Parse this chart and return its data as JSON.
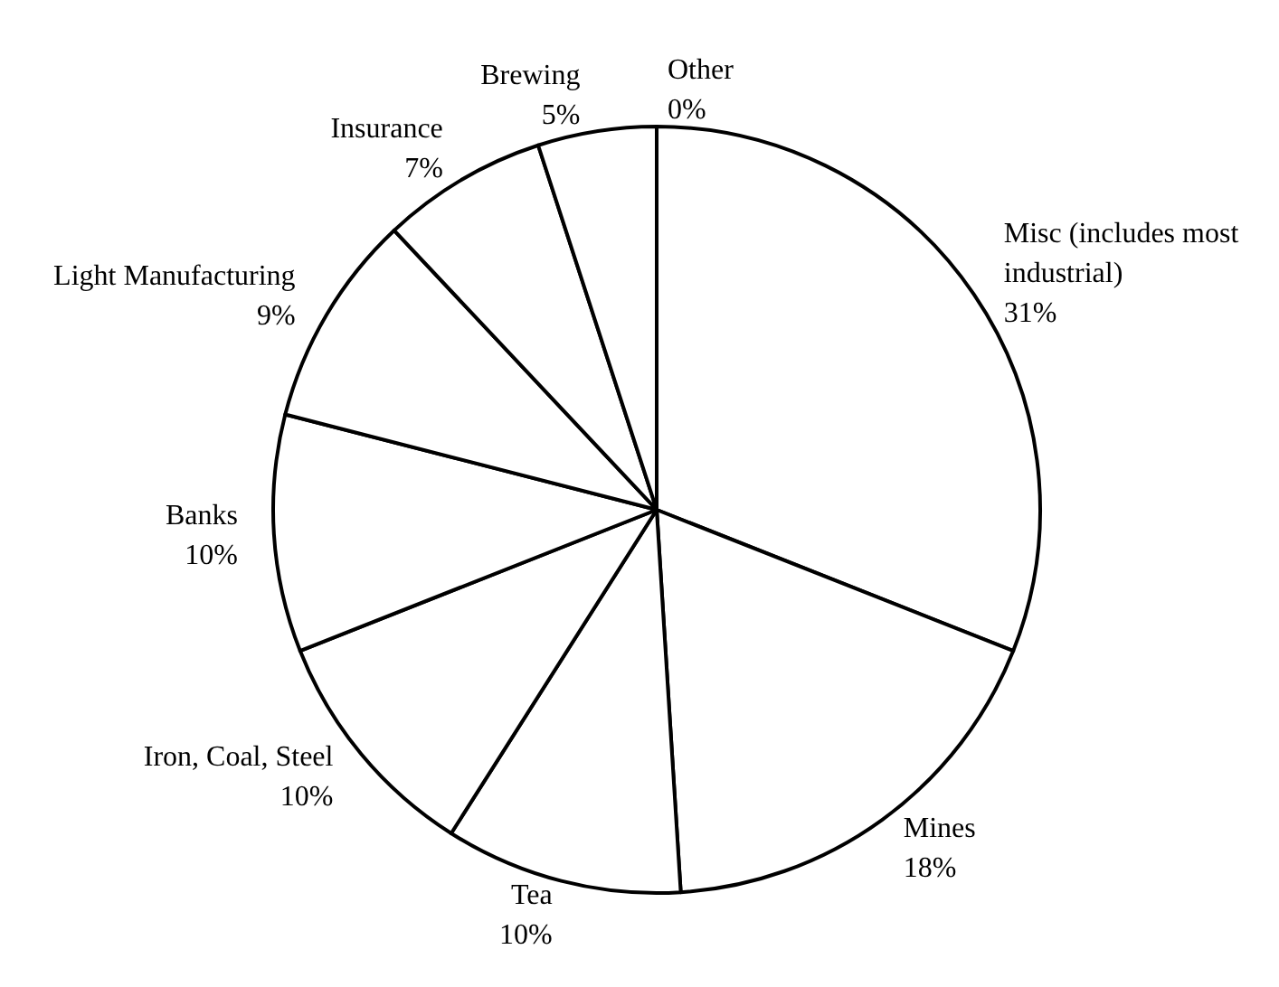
{
  "chart_data": {
    "type": "pie",
    "categories": [
      "Misc (includes most industrial)",
      "Mines",
      "Tea",
      "Iron, Coal, Steel",
      "Banks",
      "Light Manufacturing",
      "Insurance",
      "Brewing",
      "Other"
    ],
    "values": [
      31,
      18,
      10,
      10,
      10,
      9,
      7,
      5,
      0
    ],
    "value_labels": [
      "31%",
      "18%",
      "10%",
      "10%",
      "10%",
      "9%",
      "7%",
      "5%",
      "0%"
    ],
    "colors": [
      "#ffffff",
      "#ffffff",
      "#ffffff",
      "#ffffff",
      "#ffffff",
      "#ffffff",
      "#ffffff",
      "#ffffff",
      "#ffffff"
    ]
  }
}
